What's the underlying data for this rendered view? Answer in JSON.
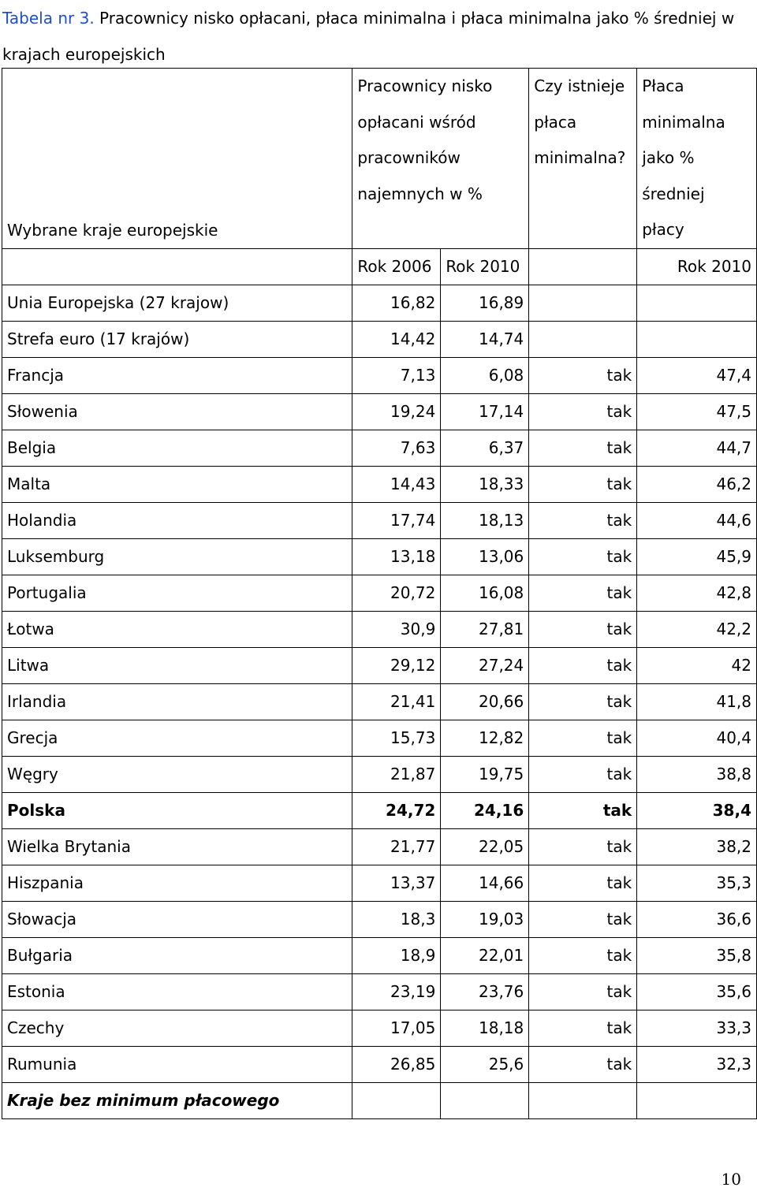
{
  "caption": {
    "prefix": "Tabela nr 3.",
    "text": " Pracownicy nisko opłacani, płaca minimalna i płaca minimalna jako % średniej w krajach europejskich"
  },
  "header": {
    "country_col": "Wybrane kraje europejskie",
    "low_paid_lines": [
      "Pracownicy nisko",
      "opłacani wśród",
      "pracowników",
      "najemnych w %"
    ],
    "min_wage_exists_lines": [
      "Czy istnieje",
      "płaca",
      "minimalna?"
    ],
    "min_wage_pct_lines": [
      "Płaca",
      "minimalna",
      "jako %",
      "średniej",
      "płacy"
    ],
    "year_2006": "Rok 2006",
    "year_2010": "Rok 2010",
    "year_2010_pct": "Rok 2010"
  },
  "rows": [
    {
      "country": "Unia Europejska (27 krajow)",
      "y2006": "16,82",
      "y2010": "16,89",
      "exists": "",
      "pct": ""
    },
    {
      "country": "Strefa euro (17 krajów)",
      "y2006": "14,42",
      "y2010": "14,74",
      "exists": "",
      "pct": ""
    },
    {
      "country": "Francja",
      "y2006": "7,13",
      "y2010": "6,08",
      "exists": "tak",
      "pct": "47,4"
    },
    {
      "country": "Słowenia",
      "y2006": "19,24",
      "y2010": "17,14",
      "exists": "tak",
      "pct": "47,5"
    },
    {
      "country": "Belgia",
      "y2006": "7,63",
      "y2010": "6,37",
      "exists": "tak",
      "pct": "44,7"
    },
    {
      "country": "Malta",
      "y2006": "14,43",
      "y2010": "18,33",
      "exists": "tak",
      "pct": "46,2"
    },
    {
      "country": "Holandia",
      "y2006": "17,74",
      "y2010": "18,13",
      "exists": "tak",
      "pct": "44,6"
    },
    {
      "country": "Luksemburg",
      "y2006": "13,18",
      "y2010": "13,06",
      "exists": "tak",
      "pct": "45,9"
    },
    {
      "country": "Portugalia",
      "y2006": "20,72",
      "y2010": "16,08",
      "exists": "tak",
      "pct": "42,8"
    },
    {
      "country": "Łotwa",
      "y2006": "30,9",
      "y2010": "27,81",
      "exists": "tak",
      "pct": "42,2"
    },
    {
      "country": "Litwa",
      "y2006": "29,12",
      "y2010": "27,24",
      "exists": "tak",
      "pct": "42"
    },
    {
      "country": "Irlandia",
      "y2006": "21,41",
      "y2010": "20,66",
      "exists": "tak",
      "pct": "41,8"
    },
    {
      "country": "Grecja",
      "y2006": "15,73",
      "y2010": "12,82",
      "exists": "tak",
      "pct": "40,4"
    },
    {
      "country": "Węgry",
      "y2006": "21,87",
      "y2010": "19,75",
      "exists": "tak",
      "pct": "38,8"
    },
    {
      "country": "Polska",
      "y2006": "24,72",
      "y2010": "24,16",
      "exists": "tak",
      "pct": "38,4",
      "bold": true
    },
    {
      "country": "Wielka Brytania",
      "y2006": "21,77",
      "y2010": "22,05",
      "exists": "tak",
      "pct": "38,2"
    },
    {
      "country": "Hiszpania",
      "y2006": "13,37",
      "y2010": "14,66",
      "exists": "tak",
      "pct": "35,3"
    },
    {
      "country": "Słowacja",
      "y2006": "18,3",
      "y2010": "19,03",
      "exists": "tak",
      "pct": "36,6"
    },
    {
      "country": "Bułgaria",
      "y2006": "18,9",
      "y2010": "22,01",
      "exists": "tak",
      "pct": "35,8"
    },
    {
      "country": "Estonia",
      "y2006": "23,19",
      "y2010": "23,76",
      "exists": "tak",
      "pct": "35,6"
    },
    {
      "country": "Czechy",
      "y2006": "17,05",
      "y2010": "18,18",
      "exists": "tak",
      "pct": "33,3"
    },
    {
      "country": "Rumunia",
      "y2006": "26,85",
      "y2010": "25,6",
      "exists": "tak",
      "pct": "32,3"
    }
  ],
  "footer_row": "Kraje bez minimum płacowego",
  "page_number": "10"
}
